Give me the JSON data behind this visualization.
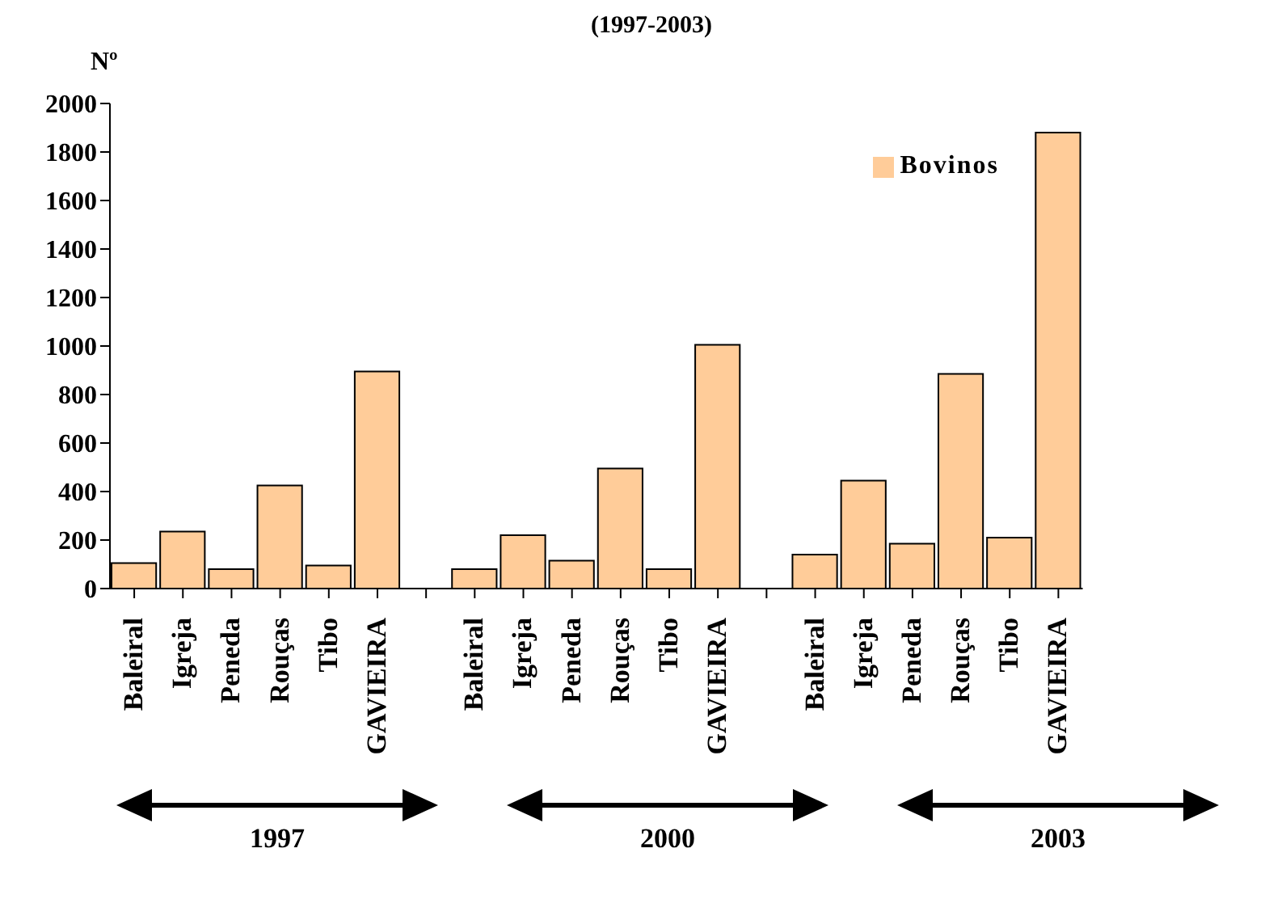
{
  "chart_data": {
    "type": "bar",
    "title": "(1997-2003)",
    "ylabel": "Nº",
    "categories": [
      "Baleiral",
      "Igreja",
      "Peneda",
      "Rouças",
      "Tibo",
      "GAVIEIRA",
      null,
      "Baleiral",
      "Igreja",
      "Peneda",
      "Rouças",
      "Tibo",
      "GAVIEIRA",
      null,
      "Baleiral",
      "Igreja",
      "Peneda",
      "Rouças",
      "Tibo",
      "GAVIEIRA"
    ],
    "series": [
      {
        "name": "Bovinos",
        "color": "#ffcc99",
        "values": [
          105,
          235,
          80,
          425,
          95,
          895,
          null,
          80,
          220,
          115,
          495,
          80,
          1005,
          null,
          140,
          445,
          185,
          885,
          210,
          1880
        ]
      }
    ],
    "ylim": [
      0,
      2000
    ],
    "yticks": [
      0,
      200,
      400,
      600,
      800,
      1000,
      1200,
      1400,
      1600,
      1800,
      2000
    ],
    "grid": false,
    "legend": "top right",
    "annotations": [
      "1997",
      "2000",
      "2003"
    ]
  }
}
